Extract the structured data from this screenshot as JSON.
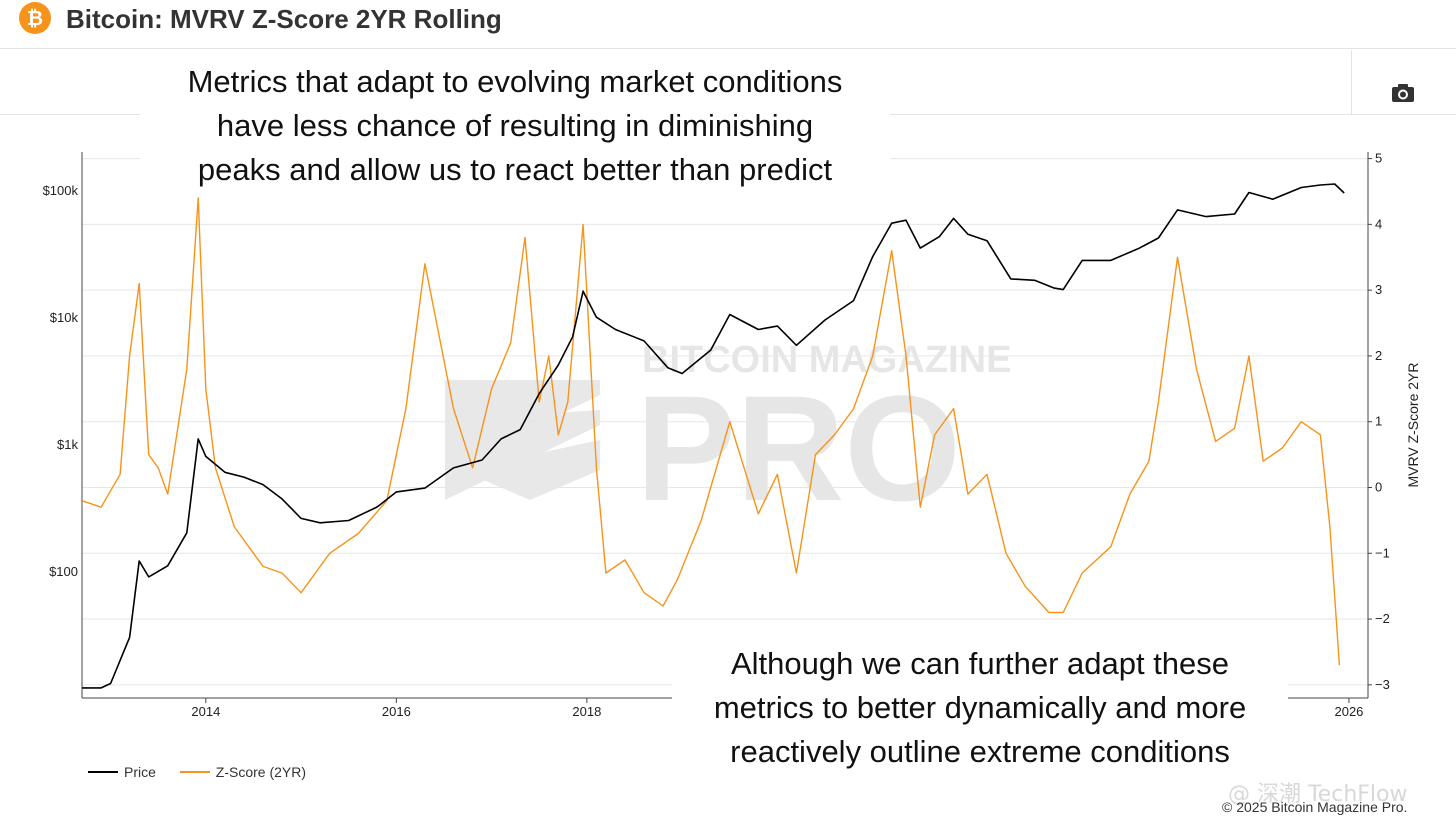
{
  "header": {
    "logo_glyph": "₿",
    "title": "Bitcoin: MVRV Z-Score 2YR Rolling"
  },
  "toolbar": {
    "camera_icon": "camera-icon"
  },
  "annotations": {
    "top": [
      "Metrics that adapt to evolving market conditions",
      "have less chance of resulting in diminishing",
      "peaks and allow us to react better than predict"
    ],
    "bottom": [
      "Although we can further adapt these",
      "metrics to better dynamically and more",
      "reactively outline extreme conditions"
    ]
  },
  "watermark": {
    "line1": "BITCOIN MAGAZINE",
    "line2": "PRO"
  },
  "footer": {
    "copyright": "© 2025 Bitcoin Magazine Pro.",
    "overlay_caption": "@ 深潮 TechFlow"
  },
  "colors": {
    "price": "#000000",
    "zscore": "#f7931a",
    "grid": "#e6e6e6",
    "brand": "#f7931a"
  },
  "chart_data": {
    "type": "line",
    "title": "Bitcoin: MVRV Z-Score 2YR Rolling",
    "xlabel": "",
    "ylabel_left": "",
    "ylabel_right": "MVRV Z-Score 2YR",
    "x_range": [
      2012.7,
      2026.2
    ],
    "x_ticks": [
      2014,
      2016,
      2018,
      2026
    ],
    "x_tick_labels": [
      "2014",
      "2016",
      "2018",
      "2026"
    ],
    "y_left": {
      "scale": "log",
      "range": [
        10,
        200000
      ],
      "ticks": [
        100,
        1000,
        10000,
        100000
      ],
      "tick_labels": [
        "$100",
        "$1k",
        "$10k",
        "$100k"
      ]
    },
    "y_right": {
      "scale": "linear",
      "range": [
        -3.2,
        5.1
      ],
      "ticks": [
        -3,
        -2,
        -1,
        0,
        1,
        2,
        3,
        4,
        5
      ],
      "tick_labels": [
        "−3",
        "−2",
        "−1",
        "0",
        "1",
        "2",
        "3",
        "4",
        "5"
      ]
    },
    "grid": true,
    "legend_position": "bottom-left",
    "series": [
      {
        "name": "Price",
        "axis": "left",
        "color": "#000000",
        "x": [
          2012.7,
          2012.9,
          2013.0,
          2013.2,
          2013.3,
          2013.4,
          2013.6,
          2013.8,
          2013.92,
          2014.0,
          2014.2,
          2014.4,
          2014.6,
          2014.8,
          2015.0,
          2015.2,
          2015.5,
          2015.8,
          2016.0,
          2016.3,
          2016.6,
          2016.9,
          2017.1,
          2017.3,
          2017.5,
          2017.7,
          2017.85,
          2017.96,
          2018.1,
          2018.3,
          2018.6,
          2018.85,
          2019.0,
          2019.3,
          2019.5,
          2019.8,
          2020.0,
          2020.2,
          2020.5,
          2020.8,
          2021.0,
          2021.2,
          2021.35,
          2021.5,
          2021.7,
          2021.85,
          2022.0,
          2022.2,
          2022.45,
          2022.7,
          2022.9,
          2023.0,
          2023.2,
          2023.5,
          2023.8,
          2024.0,
          2024.2,
          2024.5,
          2024.8,
          2024.95,
          2025.2,
          2025.5,
          2025.7,
          2025.85,
          2025.95
        ],
        "y": [
          12,
          12,
          13,
          30,
          120,
          90,
          110,
          200,
          1100,
          800,
          600,
          550,
          480,
          370,
          260,
          240,
          250,
          320,
          420,
          450,
          650,
          750,
          1100,
          1300,
          2500,
          4200,
          7000,
          16000,
          10000,
          8000,
          6500,
          4000,
          3600,
          5500,
          10500,
          8000,
          8500,
          6000,
          9500,
          13500,
          30000,
          55000,
          58000,
          35000,
          43000,
          60000,
          45000,
          40000,
          20000,
          19500,
          17000,
          16500,
          28000,
          28000,
          35000,
          42000,
          70000,
          62000,
          65000,
          96000,
          85000,
          105000,
          110000,
          112000,
          95000
        ]
      },
      {
        "name": "Z-Score (2YR)",
        "axis": "right",
        "color": "#f7931a",
        "x": [
          2012.7,
          2012.9,
          2013.1,
          2013.2,
          2013.3,
          2013.4,
          2013.5,
          2013.6,
          2013.8,
          2013.92,
          2014.0,
          2014.1,
          2014.3,
          2014.6,
          2014.8,
          2015.0,
          2015.3,
          2015.6,
          2015.9,
          2016.1,
          2016.3,
          2016.6,
          2016.8,
          2017.0,
          2017.2,
          2017.35,
          2017.5,
          2017.6,
          2017.7,
          2017.8,
          2017.96,
          2018.1,
          2018.2,
          2018.4,
          2018.6,
          2018.8,
          2018.95,
          2019.2,
          2019.5,
          2019.8,
          2020.0,
          2020.2,
          2020.4,
          2020.6,
          2020.8,
          2021.0,
          2021.2,
          2021.35,
          2021.5,
          2021.65,
          2021.85,
          2022.0,
          2022.2,
          2022.4,
          2022.6,
          2022.85,
          2023.0,
          2023.2,
          2023.5,
          2023.7,
          2023.9,
          2024.0,
          2024.2,
          2024.4,
          2024.6,
          2024.8,
          2024.95,
          2025.1,
          2025.3,
          2025.5,
          2025.7,
          2025.8,
          2025.9
        ],
        "y": [
          -0.2,
          -0.3,
          0.2,
          2.0,
          3.1,
          0.5,
          0.3,
          -0.1,
          1.8,
          4.4,
          1.5,
          0.3,
          -0.6,
          -1.2,
          -1.3,
          -1.6,
          -1.0,
          -0.7,
          -0.2,
          1.2,
          3.4,
          1.2,
          0.3,
          1.5,
          2.2,
          3.8,
          1.3,
          2.0,
          0.8,
          1.3,
          4.0,
          0.3,
          -1.3,
          -1.1,
          -1.6,
          -1.8,
          -1.4,
          -0.5,
          1.0,
          -0.4,
          0.2,
          -1.3,
          0.5,
          0.8,
          1.2,
          2.0,
          3.6,
          2.0,
          -0.3,
          0.8,
          1.2,
          -0.1,
          0.2,
          -1.0,
          -1.5,
          -1.9,
          -1.9,
          -1.3,
          -0.9,
          -0.1,
          0.4,
          1.3,
          3.5,
          1.8,
          0.7,
          0.9,
          2.0,
          0.4,
          0.6,
          1.0,
          0.8,
          -0.6,
          -2.7
        ]
      }
    ]
  }
}
